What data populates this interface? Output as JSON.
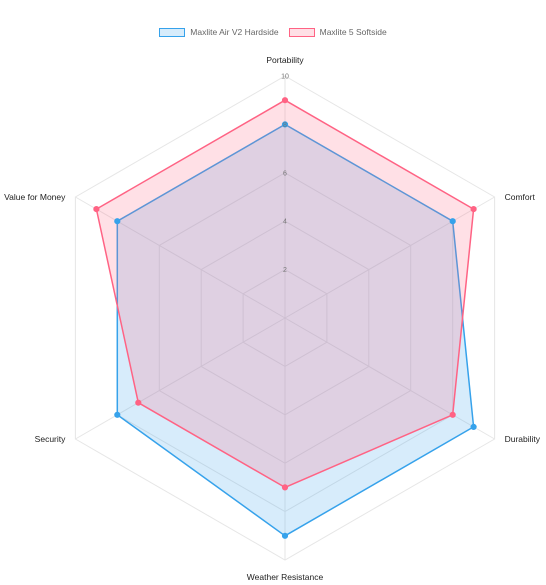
{
  "chart_data": {
    "type": "radar",
    "axes": [
      "Portability",
      "Comfort",
      "Durability",
      "Weather Resistance",
      "Security",
      "Value for Money"
    ],
    "r_range": [
      0,
      10
    ],
    "r_ticks": [
      2,
      4,
      6,
      8,
      10
    ],
    "r_tick_labels": [
      "2",
      "4",
      "6",
      "8",
      "10"
    ],
    "grid": true,
    "legend_position": "top",
    "series": [
      {
        "name": "Maxlite Air V2 Hardside",
        "values": [
          8,
          8,
          9,
          9,
          8,
          8
        ],
        "stroke": "#36a2eb",
        "fill": "rgba(54,162,235,0.2)"
      },
      {
        "name": "Maxlite 5 Softside",
        "values": [
          9,
          9,
          8,
          7,
          7,
          9
        ],
        "stroke": "#ff6384",
        "fill": "rgba(255,99,132,0.2)"
      }
    ]
  }
}
